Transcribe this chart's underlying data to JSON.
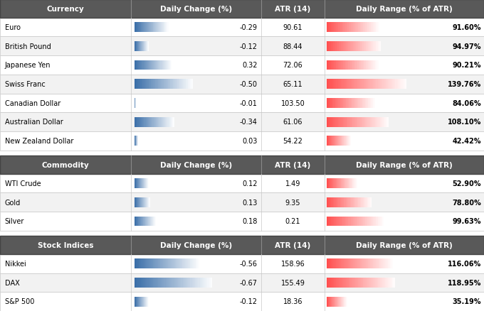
{
  "sections": [
    {
      "header": "Currency",
      "rows": [
        {
          "name": "Euro",
          "daily_change": -0.29,
          "atr": "90.61",
          "daily_range_pct": 91.6
        },
        {
          "name": "British Pound",
          "daily_change": -0.12,
          "atr": "88.44",
          "daily_range_pct": 94.97
        },
        {
          "name": "Japanese Yen",
          "daily_change": 0.32,
          "atr": "72.06",
          "daily_range_pct": 90.21
        },
        {
          "name": "Swiss Franc",
          "daily_change": -0.5,
          "atr": "65.11",
          "daily_range_pct": 139.76
        },
        {
          "name": "Canadian Dollar",
          "daily_change": -0.01,
          "atr": "103.50",
          "daily_range_pct": 84.06
        },
        {
          "name": "Australian Dollar",
          "daily_change": -0.34,
          "atr": "61.06",
          "daily_range_pct": 108.1
        },
        {
          "name": "New Zealand Dollar",
          "daily_change": 0.03,
          "atr": "54.22",
          "daily_range_pct": 42.42
        }
      ]
    },
    {
      "header": "Commodity",
      "rows": [
        {
          "name": "WTI Crude",
          "daily_change": 0.12,
          "atr": "1.49",
          "daily_range_pct": 52.9
        },
        {
          "name": "Gold",
          "daily_change": 0.13,
          "atr": "9.35",
          "daily_range_pct": 78.8
        },
        {
          "name": "Silver",
          "daily_change": 0.18,
          "atr": "0.21",
          "daily_range_pct": 99.63
        }
      ]
    },
    {
      "header": "Stock Indices",
      "rows": [
        {
          "name": "Nikkei",
          "daily_change": -0.56,
          "atr": "158.96",
          "daily_range_pct": 116.06
        },
        {
          "name": "DAX",
          "daily_change": -0.67,
          "atr": "155.49",
          "daily_range_pct": 118.95
        },
        {
          "name": "S&P 500",
          "daily_change": -0.12,
          "atr": "18.36",
          "daily_range_pct": 35.19
        }
      ]
    }
  ],
  "col_headers": [
    "Daily Change (%)",
    "ATR (14)",
    "Daily Range (% of ATR)"
  ],
  "header_bg": "#595959",
  "header_fg": "#ffffff",
  "row_bg_white": "#ffffff",
  "row_bg_gray": "#f2f2f2",
  "border_color": "#c8c8c8",
  "daily_change_max": 0.7,
  "daily_range_max": 140.0,
  "blue_dark": "#3a6ea8",
  "blue_light": "#aec6e0",
  "red_dark": "#e84040",
  "red_light": "#ffaaaa"
}
